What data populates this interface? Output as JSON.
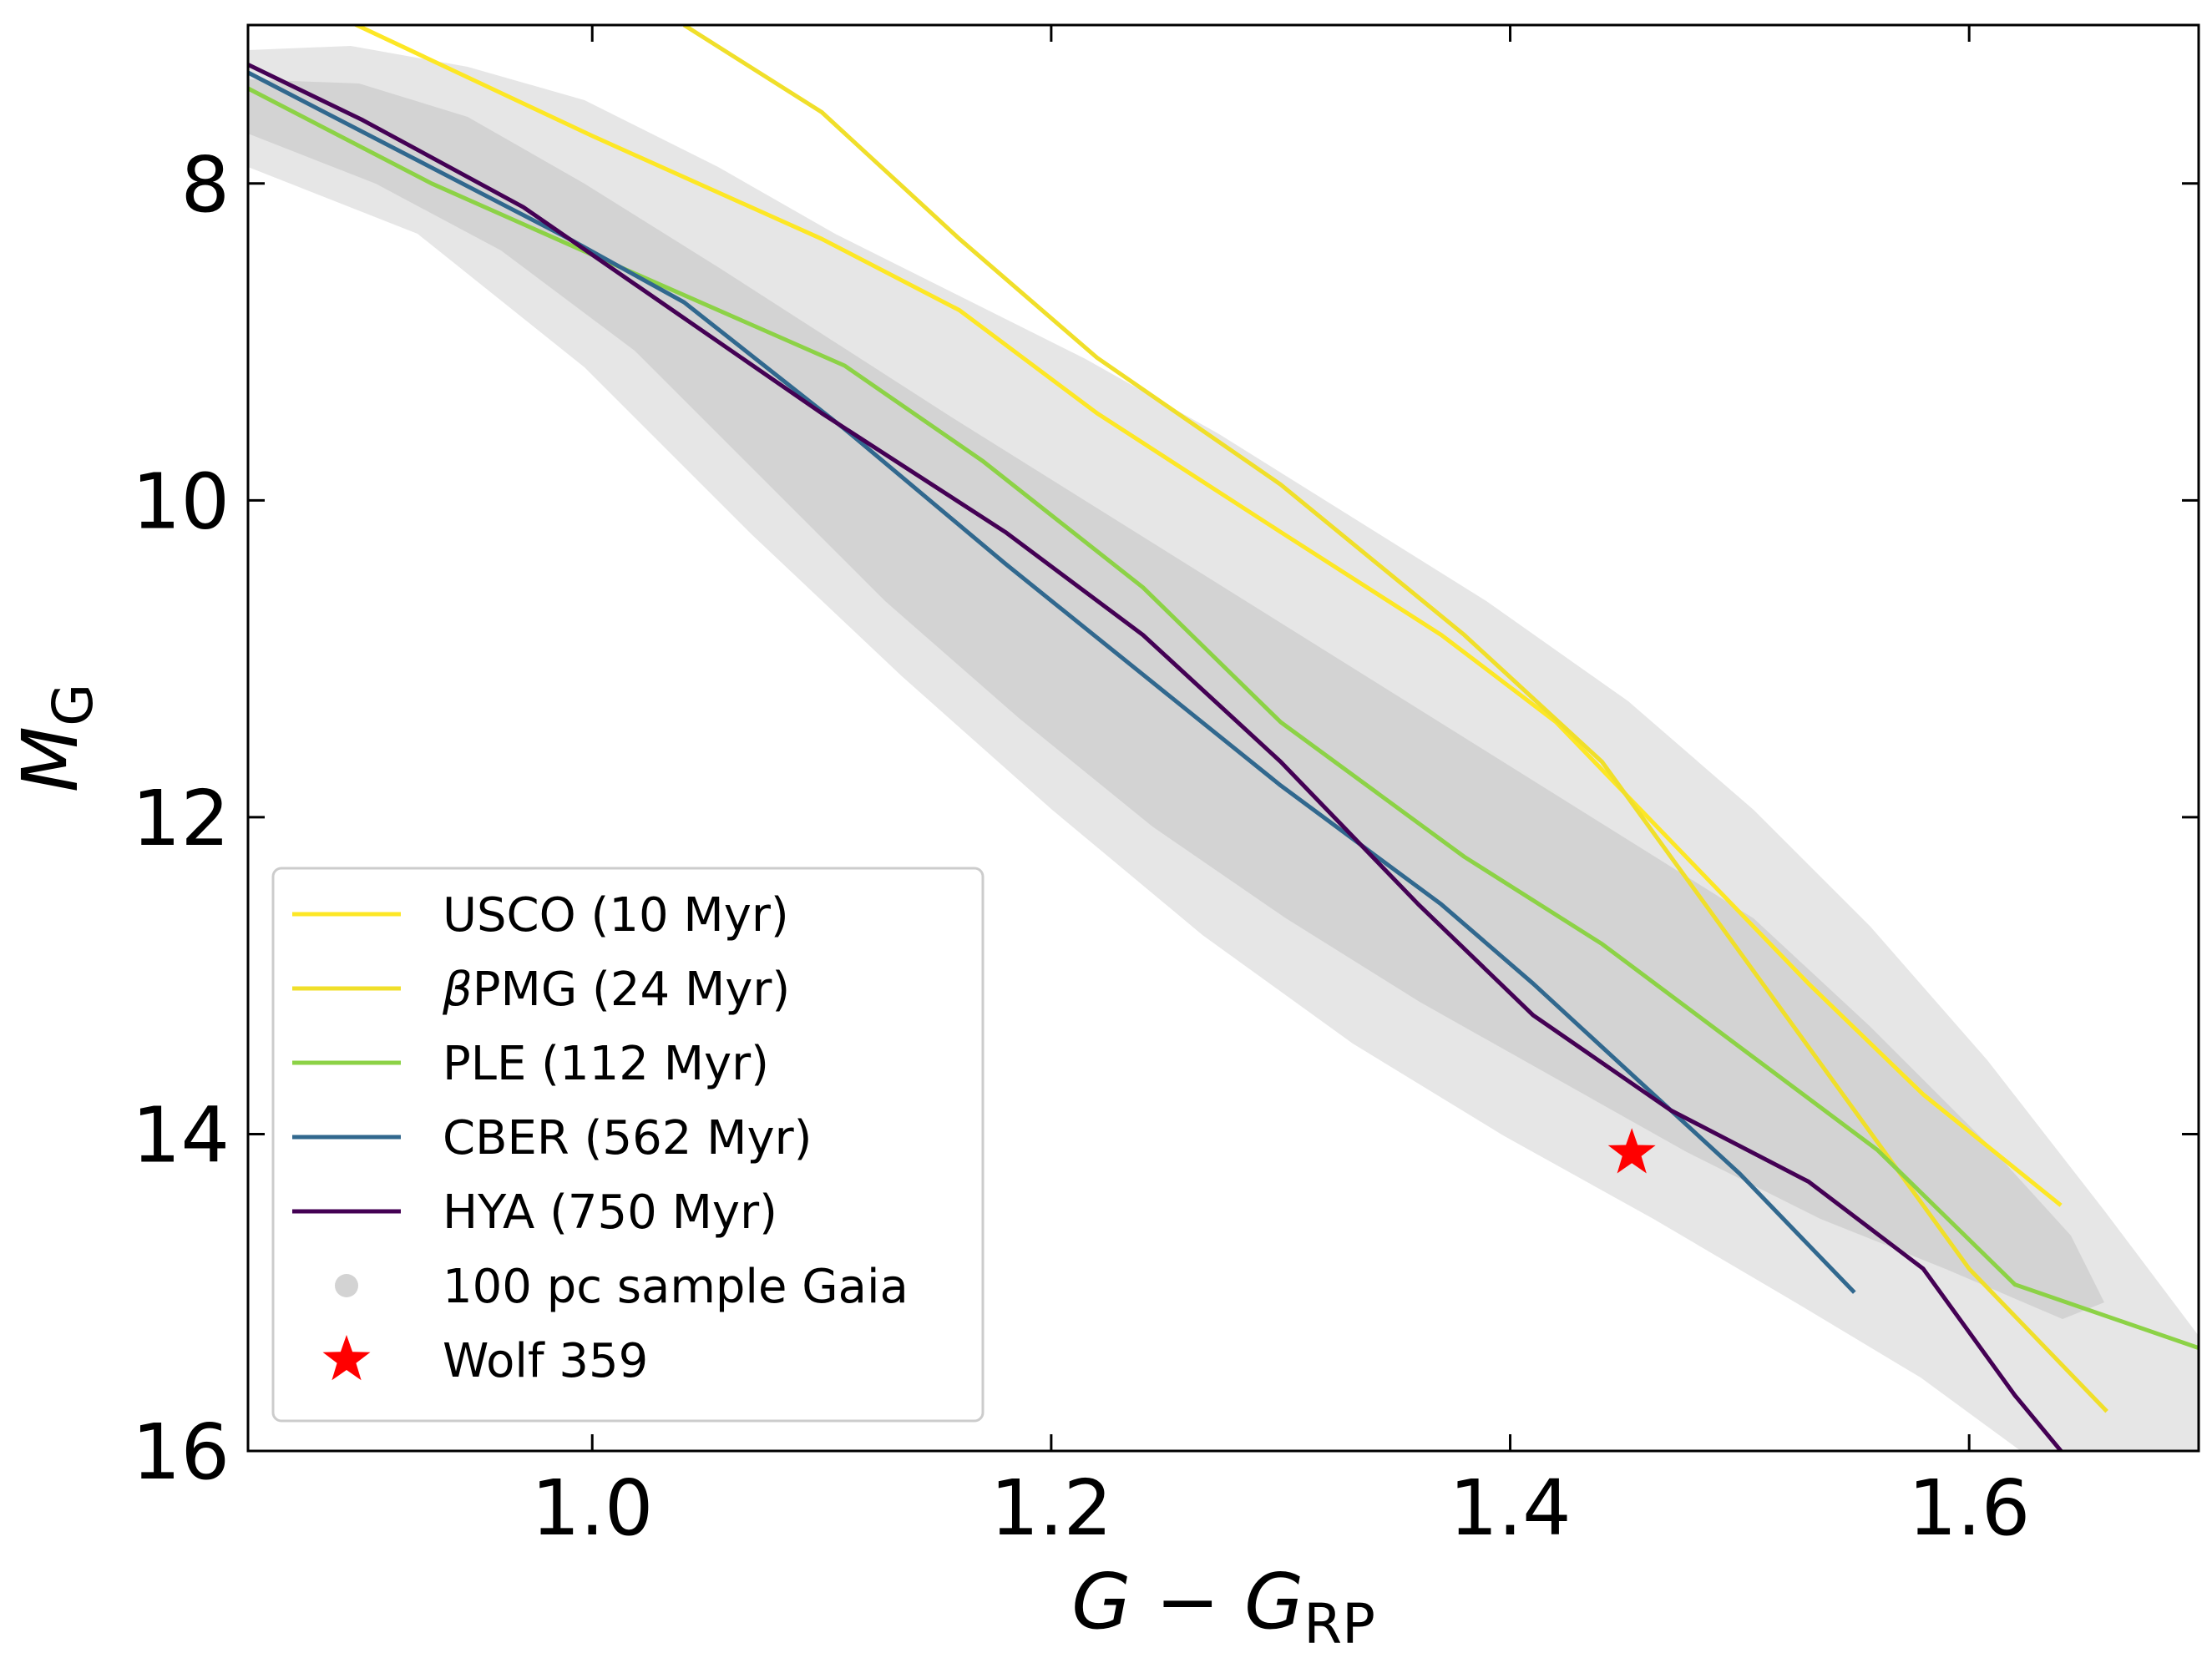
{
  "chart_data": {
    "type": "line",
    "title": "",
    "xlabel": {
      "main": "G − G",
      "sub": "RP"
    },
    "ylabel": {
      "main": "M",
      "sub": "G"
    },
    "xlim": [
      0.85,
      1.7
    ],
    "ylim": [
      16,
      7
    ],
    "y_inverted": true,
    "x_ticks": [
      1.0,
      1.2,
      1.4,
      1.6
    ],
    "x_tick_labels": [
      "1.0",
      "1.2",
      "1.4",
      "1.6"
    ],
    "y_ticks": [
      8,
      10,
      12,
      14,
      16
    ],
    "y_tick_labels": [
      "8",
      "10",
      "12",
      "14",
      "16"
    ],
    "grid": false,
    "legend_position": "lower-left",
    "series": [
      {
        "name": "USCO (10 Myr)",
        "color": "#fde725",
        "x": [
          0.89,
          1.0,
          1.1,
          1.16,
          1.22,
          1.3,
          1.37,
          1.42,
          1.46,
          1.5,
          1.53,
          1.58,
          1.64
        ],
        "y": [
          6.95,
          7.7,
          8.35,
          8.8,
          9.45,
          10.2,
          10.85,
          11.4,
          12.0,
          12.6,
          13.05,
          13.75,
          14.45
        ]
      },
      {
        "name": "βPMG (24 Myr)",
        "color": "#f0df2a",
        "x": [
          1.04,
          1.1,
          1.16,
          1.22,
          1.3,
          1.38,
          1.44,
          1.48,
          1.52,
          1.56,
          1.6,
          1.66
        ],
        "y": [
          7.0,
          7.55,
          8.35,
          9.1,
          9.9,
          10.85,
          11.65,
          12.45,
          13.25,
          14.05,
          14.85,
          15.75
        ]
      },
      {
        "name": "PLE (112 Myr)",
        "color": "#8cd246",
        "x": [
          0.85,
          0.93,
          1.0,
          1.11,
          1.17,
          1.24,
          1.3,
          1.38,
          1.44,
          1.5,
          1.56,
          1.62,
          1.7
        ],
        "y": [
          7.4,
          8.0,
          8.45,
          9.15,
          9.75,
          10.55,
          11.4,
          12.25,
          12.8,
          13.45,
          14.1,
          14.95,
          15.35
        ]
      },
      {
        "name": "CBER (562 Myr)",
        "color": "#31688e",
        "x": [
          0.85,
          0.93,
          0.99,
          1.04,
          1.11,
          1.18,
          1.24,
          1.3,
          1.37,
          1.41,
          1.44,
          1.47,
          1.5,
          1.55
        ],
        "y": [
          7.3,
          7.9,
          8.35,
          8.75,
          9.55,
          10.4,
          11.1,
          11.8,
          12.55,
          13.05,
          13.45,
          13.85,
          14.25,
          15.0
        ]
      },
      {
        "name": "HYA (750 Myr)",
        "color": "#440154",
        "x": [
          0.85,
          0.9,
          0.97,
          1.04,
          1.1,
          1.18,
          1.24,
          1.3,
          1.36,
          1.41,
          1.47,
          1.53,
          1.58,
          1.62,
          1.64
        ],
        "y": [
          7.25,
          7.6,
          8.15,
          8.85,
          9.45,
          10.2,
          10.85,
          11.65,
          12.55,
          13.25,
          13.85,
          14.3,
          14.85,
          15.65,
          16.0
        ]
      }
    ],
    "scatter_sample": {
      "name": "100 pc sample Gaia",
      "color": "#d3d3d3"
    },
    "highlight_point": {
      "name": "Wolf 359",
      "x": 1.453,
      "y": 14.12,
      "color": "#ff0000",
      "marker": "star"
    }
  }
}
